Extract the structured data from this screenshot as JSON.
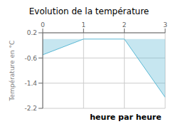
{
  "chart_data": {
    "type": "area",
    "title": "Evolution de la température",
    "ylabel": "Température en °C",
    "annotations": [
      "heure par heure"
    ],
    "x": [
      0,
      1,
      2,
      3
    ],
    "values": [
      -0.5,
      0.0,
      0.0,
      -1.85
    ],
    "color": "#5bb8d4",
    "xlim": [
      0,
      3
    ],
    "ylim": [
      -2.2,
      0.2
    ],
    "xticks": [
      0,
      1,
      2,
      3
    ],
    "yticks": [
      0.2,
      -0.6,
      -1.4,
      -2.2
    ],
    "grid": true
  }
}
